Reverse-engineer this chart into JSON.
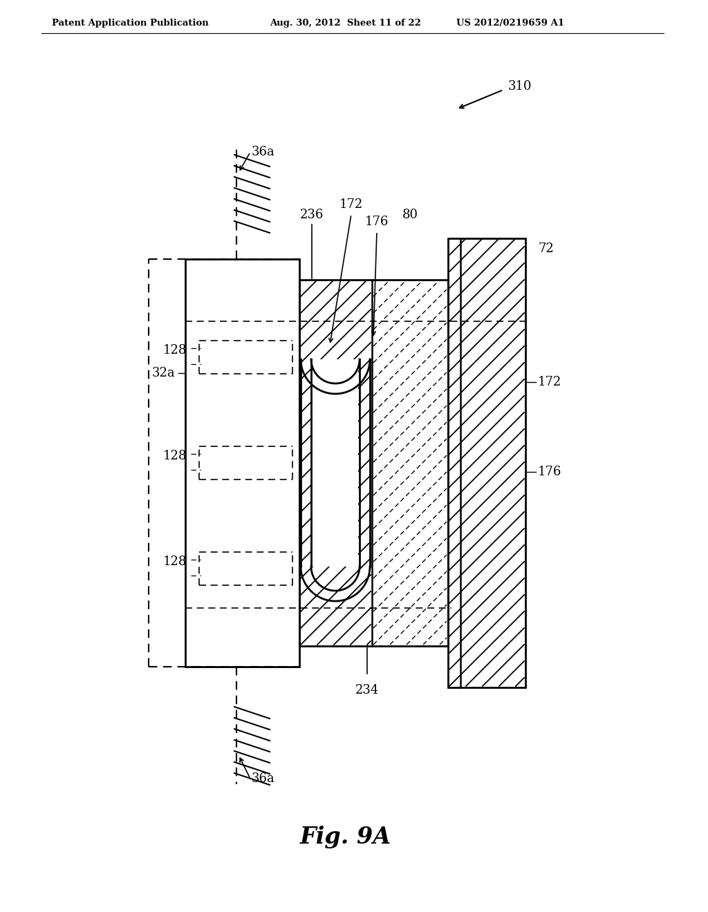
{
  "title_left": "Patent Application Publication",
  "title_mid": "Aug. 30, 2012  Sheet 11 of 22",
  "title_right": "US 2012/0219659 A1",
  "fig_label": "Fig. 9A",
  "bg_color": "#ffffff",
  "lc": "#000000",
  "refs": {
    "310": "310",
    "36a": "36a",
    "32a": "32a",
    "128": "128",
    "172": "172",
    "176": "176",
    "236": "236",
    "80": "80",
    "72": "72",
    "234": "234"
  }
}
